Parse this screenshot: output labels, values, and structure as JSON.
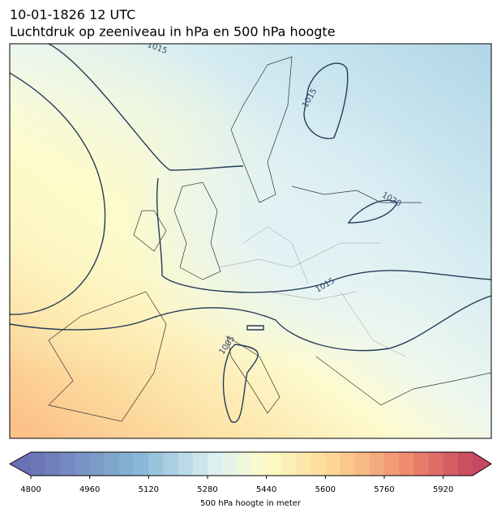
{
  "title": "10-01-1826 12 UTC",
  "subtitle": "Luchtdruk op zeeniveau in hPa en 500 hPa hoogte",
  "contour_labels": [
    "1015",
    "1015",
    "1020",
    "1015",
    "1005"
  ],
  "colorbar": {
    "label": "500 hPa hoogte in meter",
    "range": [
      4800,
      6000
    ],
    "ticks": [
      4800,
      4960,
      5120,
      5280,
      5440,
      5600,
      5760,
      5920
    ]
  }
}
